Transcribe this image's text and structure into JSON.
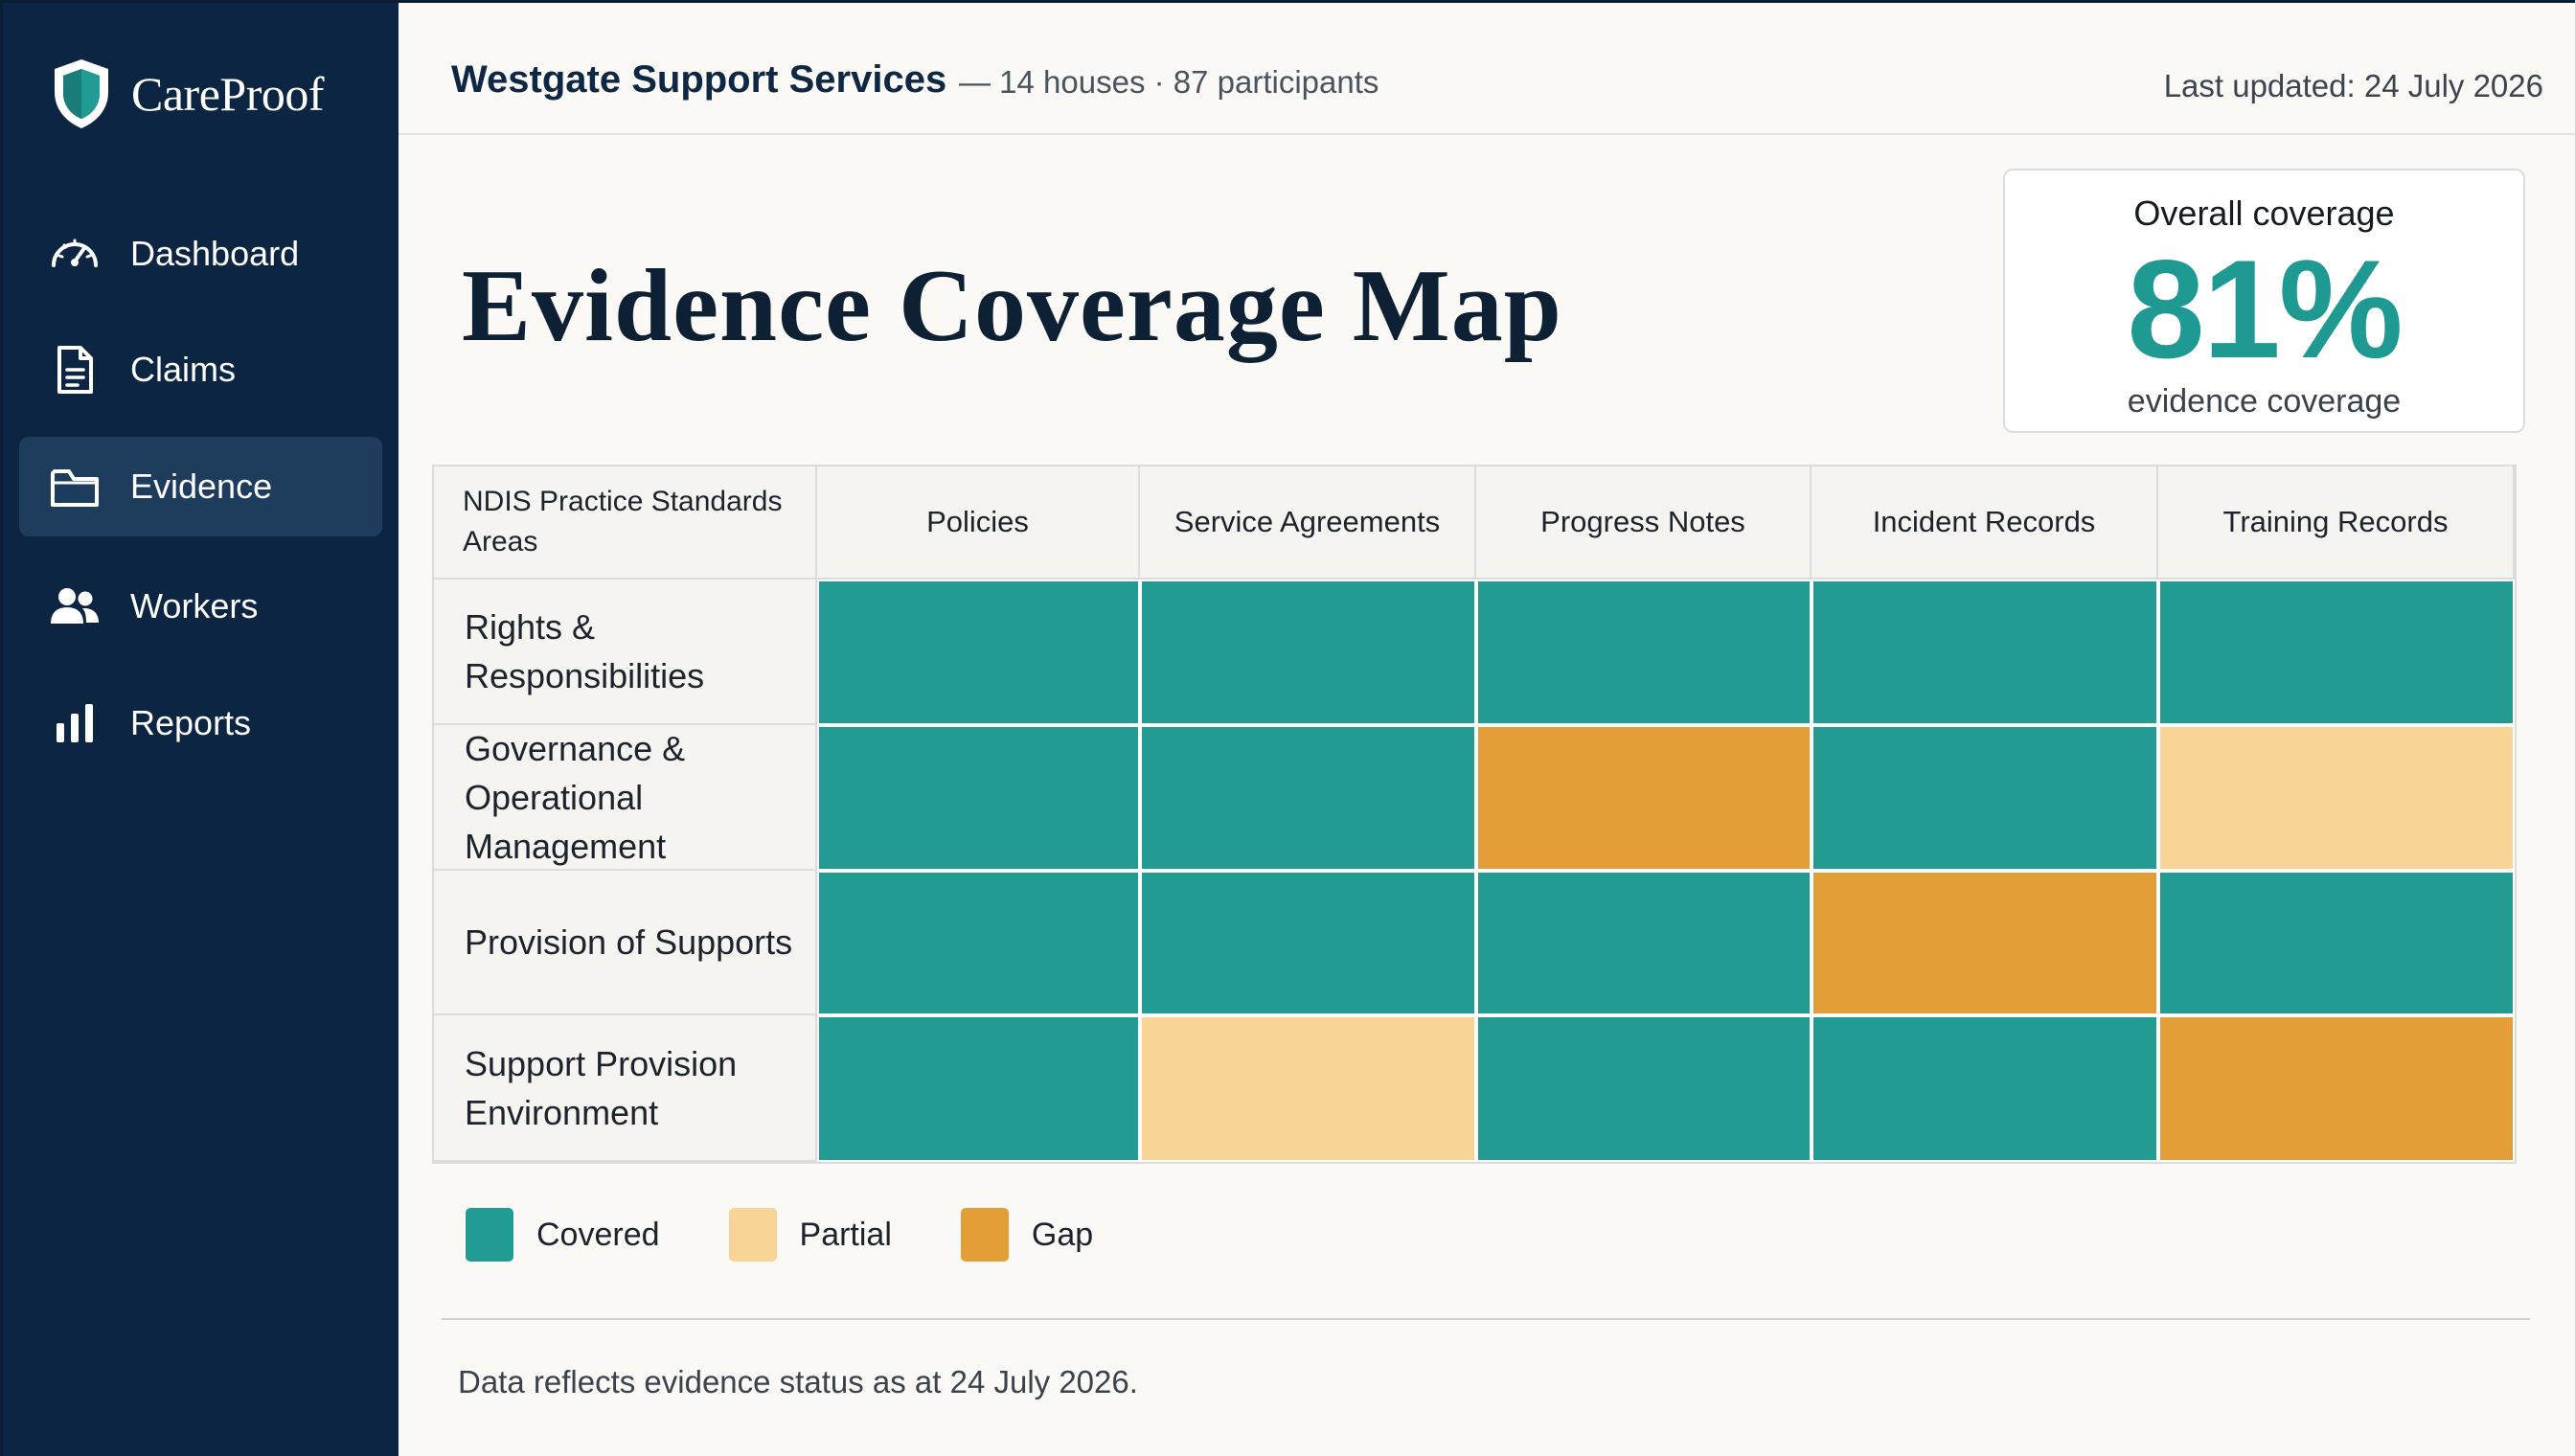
{
  "brand": {
    "name": "CareProof"
  },
  "nav": [
    {
      "label": "Dashboard",
      "icon": "gauge-icon",
      "active": false
    },
    {
      "label": "Claims",
      "icon": "document-icon",
      "active": false
    },
    {
      "label": "Evidence",
      "icon": "folder-icon",
      "active": true
    },
    {
      "label": "Workers",
      "icon": "users-icon",
      "active": false
    },
    {
      "label": "Reports",
      "icon": "bar-chart-icon",
      "active": false
    }
  ],
  "header": {
    "org_name": "Westgate Support Services",
    "org_meta": "— 14 houses · 87 participants",
    "last_updated": "Last updated: 24 July 2026"
  },
  "page": {
    "title": "Evidence Coverage Map"
  },
  "kpi": {
    "title": "Overall coverage",
    "value": "81%",
    "value_fraction": 0.81,
    "subtitle": "evidence coverage"
  },
  "colors": {
    "covered": "#229b93",
    "partial": "#f8d497",
    "gap": "#e39e37"
  },
  "matrix": {
    "corner_label": "NDIS Practice Standards Areas",
    "columns": [
      "Policies",
      "Service Agreements",
      "Progress Notes",
      "Incident Records",
      "Training Records"
    ],
    "rows": [
      {
        "label": "Rights & Responsibilities",
        "status": [
          "covered",
          "covered",
          "covered",
          "covered",
          "covered"
        ]
      },
      {
        "label": "Governance & Operational Management",
        "status": [
          "covered",
          "covered",
          "gap",
          "covered",
          "partial"
        ]
      },
      {
        "label": "Provision of Supports",
        "status": [
          "covered",
          "covered",
          "covered",
          "gap",
          "covered"
        ]
      },
      {
        "label": "Support Provision Environment",
        "status": [
          "covered",
          "partial",
          "covered",
          "covered",
          "gap"
        ]
      }
    ]
  },
  "legend": [
    {
      "key": "covered",
      "label": "Covered"
    },
    {
      "key": "partial",
      "label": "Partial"
    },
    {
      "key": "gap",
      "label": "Gap"
    }
  ],
  "footnote": "Data reflects evidence status as at 24 July 2026."
}
